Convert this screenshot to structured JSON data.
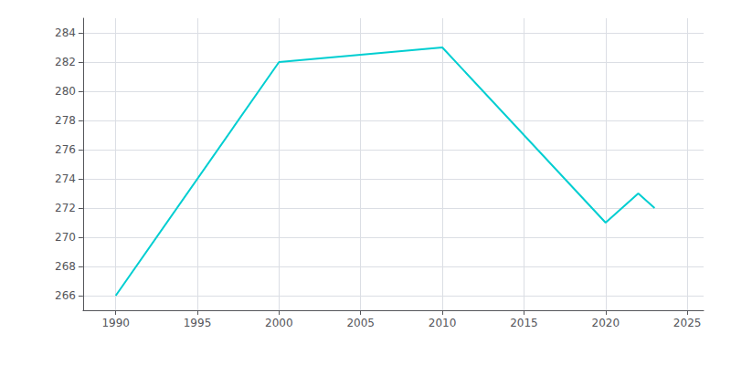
{
  "chart_data": {
    "type": "line",
    "x": [
      1990,
      2000,
      2005,
      2010,
      2020,
      2022,
      2023
    ],
    "values": [
      266,
      282,
      282.5,
      283,
      271,
      273,
      272
    ],
    "color": "#00CED1",
    "xlim": [
      1988,
      2026
    ],
    "ylim": [
      265,
      285
    ],
    "xticks": [
      1990,
      1995,
      2000,
      2005,
      2010,
      2015,
      2020,
      2025
    ],
    "yticks": [
      266,
      268,
      270,
      272,
      274,
      276,
      278,
      280,
      282,
      284
    ],
    "grid": true
  }
}
